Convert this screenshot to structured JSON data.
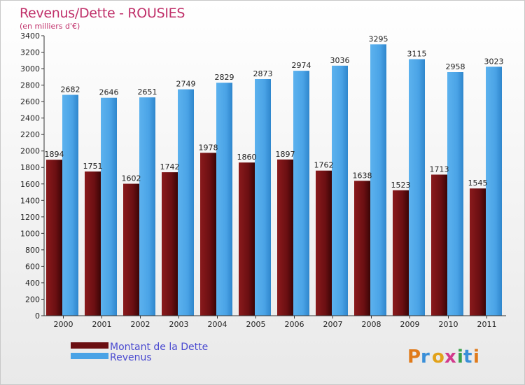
{
  "colors": {
    "debt": "#6b0f12",
    "revenue": "#4aa3e6",
    "title": "#c0306a",
    "legend_text": "#4a4ad0"
  },
  "logo": {
    "text": "Proxiti",
    "letters": [
      "P",
      "r",
      "o",
      "x",
      "i",
      "t",
      "i"
    ]
  },
  "chart_data": {
    "type": "bar",
    "title": "Revenus/Dette - ROUSIES",
    "subtitle": "(en milliers d'€)",
    "xlabel": "",
    "ylabel": "",
    "ylim": [
      0,
      3400
    ],
    "yticks": [
      0,
      200,
      400,
      600,
      800,
      1000,
      1200,
      1400,
      1600,
      1800,
      2000,
      2200,
      2400,
      2600,
      2800,
      3000,
      3200,
      3400
    ],
    "grid": false,
    "legend_position": "bottom-left",
    "categories": [
      "2000",
      "2001",
      "2002",
      "2003",
      "2004",
      "2005",
      "2006",
      "2007",
      "2008",
      "2009",
      "2010",
      "2011"
    ],
    "series": [
      {
        "name": "Montant de la Dette",
        "color": "#6b0f12",
        "values": [
          1894,
          1751,
          1602,
          1742,
          1978,
          1860,
          1897,
          1762,
          1638,
          1523,
          1713,
          1545
        ],
        "labels": [
          "1894",
          "1751",
          "1602",
          "1742",
          "1978",
          "1860",
          "1897",
          "1762",
          "1638",
          "1523",
          "1713",
          "1545"
        ]
      },
      {
        "name": "Revenus",
        "color": "#4aa3e6",
        "values": [
          2682,
          2646,
          2651,
          2749,
          2829,
          2873,
          2974,
          3036,
          3295,
          3115,
          2958,
          3023
        ],
        "labels": [
          "2682",
          "2646",
          "2651",
          "2749",
          "2829",
          "2873",
          "2974",
          "3036",
          "3295",
          "3115",
          "2958",
          "3023"
        ]
      }
    ]
  }
}
